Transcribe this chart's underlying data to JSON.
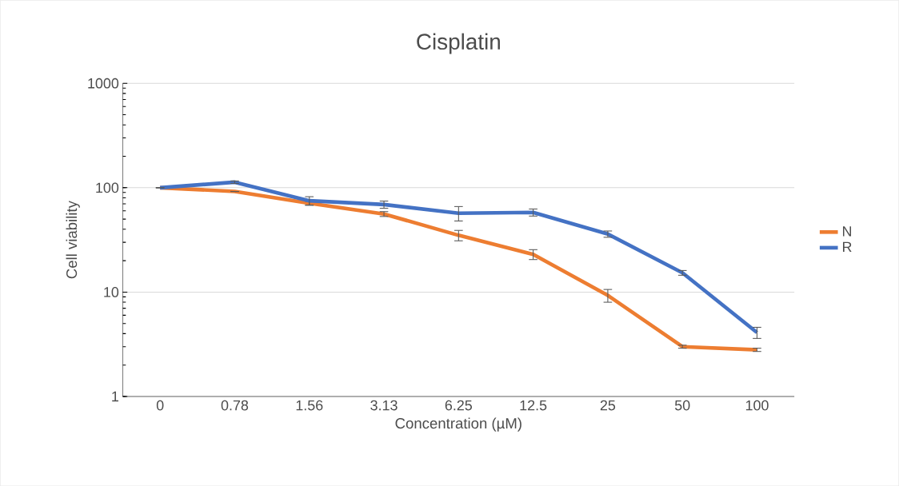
{
  "chart_data": {
    "type": "line",
    "title": "Cisplatin",
    "xlabel": "Concentration (µM)",
    "ylabel": "Cell viability",
    "categories": [
      "0",
      "0.78",
      "1.56",
      "3.13",
      "6.25",
      "12.5",
      "25",
      "50",
      "100"
    ],
    "series": [
      {
        "name": "N",
        "color": "#ed7d31",
        "values": [
          100,
          92,
          71,
          56,
          35,
          23,
          9.3,
          3.0,
          2.8
        ],
        "errors": [
          null,
          null,
          3,
          3,
          4,
          2.5,
          1.3,
          0.1,
          0.1
        ]
      },
      {
        "name": "R",
        "color": "#4472c4",
        "values": [
          100,
          113,
          75,
          69,
          57,
          58,
          36,
          15.3,
          4.1
        ],
        "errors": [
          null,
          3,
          7,
          5.5,
          9,
          4.5,
          2.5,
          0.8,
          0.5
        ]
      }
    ],
    "log": "y",
    "ylim": [
      1,
      1000
    ],
    "yticks": [
      1,
      10,
      100,
      1000
    ],
    "grid": "y",
    "legend": "right",
    "marker": "none",
    "line_style": "solid"
  }
}
